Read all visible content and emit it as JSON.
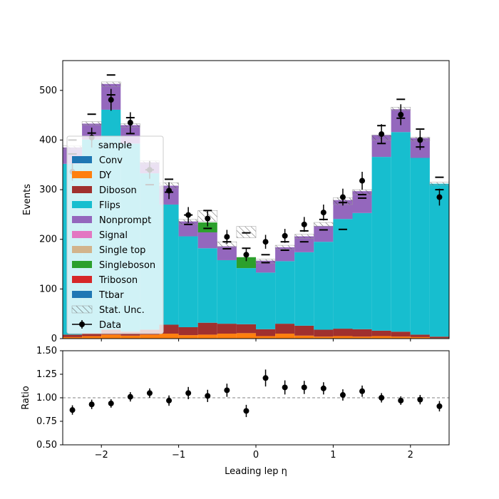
{
  "chart_data": {
    "type": "bar",
    "xlabel": "Leading lep η",
    "ylabel": "Events",
    "ratio_ylabel": "Ratio",
    "xlim": [
      -2.5,
      2.5
    ],
    "ylim": [
      0,
      560
    ],
    "ratio_ylim": [
      0.5,
      1.5
    ],
    "x_ticks": [
      -2,
      -1,
      0,
      1,
      2
    ],
    "x_tick_labels": [
      "−2",
      "−1",
      "0",
      "1",
      "2"
    ],
    "y_ticks": [
      0,
      100,
      200,
      300,
      400,
      500
    ],
    "y_tick_labels": [
      "0",
      "100",
      "200",
      "300",
      "400",
      "500"
    ],
    "ratio_ticks": [
      0.5,
      0.75,
      1.0,
      1.25,
      1.5
    ],
    "ratio_tick_labels": [
      "0.50",
      "0.75",
      "1.00",
      "1.25",
      "1.50"
    ],
    "bin_edges": [
      -2.5,
      -2.25,
      -2.0,
      -1.75,
      -1.5,
      -1.25,
      -1.0,
      -0.75,
      -0.5,
      -0.25,
      0.0,
      0.25,
      0.5,
      0.75,
      1.0,
      1.25,
      1.5,
      1.75,
      2.0,
      2.25,
      2.5
    ],
    "legend_title": "sample",
    "legend_position": "center-left",
    "grid": false,
    "series": [
      {
        "name": "Conv",
        "color": "#1f77b4",
        "values": [
          0,
          0,
          0,
          0,
          0,
          0,
          0,
          0,
          0,
          0,
          0,
          0,
          0,
          0,
          0,
          0,
          0,
          0,
          0,
          0
        ]
      },
      {
        "name": "DY",
        "color": "#ff7f0e",
        "values": [
          3,
          5,
          8,
          6,
          8,
          10,
          7,
          8,
          10,
          11,
          5,
          10,
          6,
          4,
          5,
          4,
          5,
          4,
          3,
          1
        ]
      },
      {
        "name": "Diboson",
        "color": "#a0302e",
        "values": [
          5,
          6,
          10,
          8,
          10,
          18,
          16,
          24,
          20,
          18,
          14,
          20,
          20,
          14,
          15,
          15,
          11,
          10,
          5,
          3
        ]
      },
      {
        "name": "Flips",
        "color": "#17becf",
        "values": [
          344,
          390,
          443,
          379,
          315,
          242,
          183,
          150,
          128,
          113,
          114,
          126,
          148,
          177,
          221,
          234,
          350,
          402,
          356,
          308
        ]
      },
      {
        "name": "Nonprompt",
        "color": "#9467bd",
        "values": [
          33,
          32,
          52,
          37,
          22,
          38,
          30,
          32,
          28,
          0,
          24,
          28,
          32,
          32,
          38,
          44,
          44,
          46,
          40,
          0
        ]
      },
      {
        "name": "Signal",
        "color": "#e377c2",
        "values": [
          0,
          0,
          0,
          0,
          0,
          0,
          0,
          0,
          0,
          0,
          0,
          0,
          0,
          0,
          0,
          0,
          0,
          0,
          0,
          0
        ]
      },
      {
        "name": "Single top",
        "color": "#d2b48c",
        "values": [
          0,
          0,
          0,
          0,
          0,
          0,
          0,
          0,
          0,
          0,
          0,
          0,
          0,
          0,
          0,
          0,
          0,
          0,
          0,
          0
        ]
      },
      {
        "name": "Singleboson",
        "color": "#2ca02c",
        "values": [
          0,
          0,
          0,
          0,
          0,
          0,
          0,
          20,
          0,
          22,
          0,
          0,
          0,
          0,
          0,
          0,
          0,
          0,
          0,
          0
        ]
      },
      {
        "name": "Triboson",
        "color": "#d62728",
        "values": [
          0,
          0,
          0,
          0,
          0,
          0,
          0,
          0,
          0,
          0,
          0,
          0,
          0,
          0,
          0,
          0,
          0,
          0,
          0,
          0
        ]
      },
      {
        "name": "Ttbar",
        "color": "#1f77b4",
        "values": [
          0,
          0,
          0,
          0,
          0,
          0,
          0,
          0,
          0,
          0,
          0,
          0,
          0,
          0,
          0,
          0,
          0,
          0,
          0,
          0
        ]
      }
    ],
    "stat_unc": {
      "name": "Stat. Unc.",
      "up": [
        388,
        437,
        517,
        433,
        358,
        314,
        240,
        258,
        195,
        226,
        160,
        188,
        210,
        234,
        284,
        300,
        410,
        466,
        406,
        315
      ],
      "down": [
        382,
        430,
        508,
        426,
        352,
        303,
        230,
        236,
        185,
        203,
        152,
        180,
        202,
        226,
        270,
        290,
        400,
        460,
        398,
        309
      ]
    },
    "mc_err_caps": {
      "up": [
        400,
        452,
        531,
        445,
        340,
        321,
        249,
        258,
        195,
        213,
        169,
        195,
        217,
        240,
        274,
        290,
        429,
        482,
        422,
        325
      ],
      "down": [
        372,
        414,
        491,
        413,
        310,
        295,
        230,
        222,
        181,
        182,
        153,
        178,
        195,
        219,
        220,
        283,
        393,
        444,
        386,
        300
      ]
    },
    "data": {
      "name": "Data",
      "values": [
        336,
        405,
        481,
        435,
        340,
        298,
        249,
        242,
        205,
        169,
        195,
        207,
        230,
        254,
        285,
        318,
        412,
        451,
        400,
        285
      ],
      "errors": [
        18,
        20,
        22,
        21,
        18,
        17,
        16,
        16,
        14,
        13,
        14,
        14,
        15,
        16,
        17,
        18,
        20,
        21,
        20,
        17
      ]
    },
    "ratio": {
      "values": [
        0.87,
        0.93,
        0.94,
        1.01,
        1.05,
        0.97,
        1.05,
        1.02,
        1.08,
        0.86,
        1.21,
        1.11,
        1.11,
        1.1,
        1.03,
        1.07,
        1.0,
        0.97,
        0.98,
        0.91
      ],
      "errors": [
        0.05,
        0.05,
        0.045,
        0.05,
        0.05,
        0.055,
        0.065,
        0.065,
        0.07,
        0.065,
        0.09,
        0.075,
        0.07,
        0.065,
        0.06,
        0.06,
        0.05,
        0.045,
        0.05,
        0.055
      ]
    }
  }
}
